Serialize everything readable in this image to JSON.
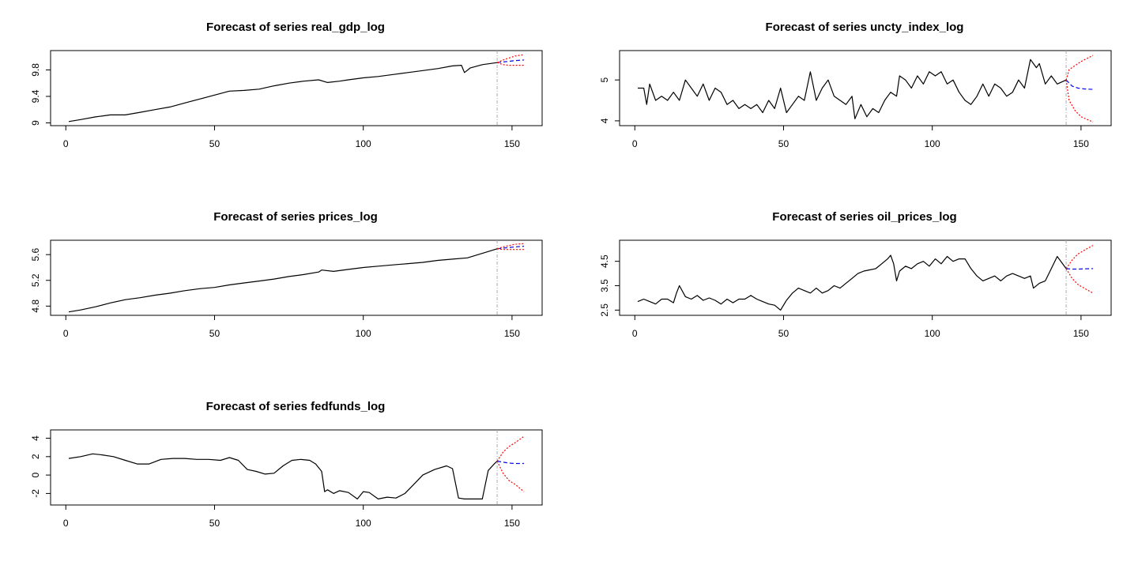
{
  "chart_data": [
    {
      "type": "line",
      "title": "Forecast of series real_gdp_log",
      "xlim": [
        1,
        154
      ],
      "ylim": [
        9.0,
        10.05
      ],
      "x_ticks": [
        0,
        50,
        100,
        150
      ],
      "y_ticks": [
        9.0,
        9.4,
        9.8
      ],
      "forecast_start": 145,
      "series": [
        {
          "role": "observed",
          "color": "#000000",
          "style": "solid",
          "x": [
            1,
            5,
            10,
            15,
            20,
            25,
            30,
            35,
            40,
            45,
            50,
            55,
            60,
            65,
            70,
            75,
            80,
            85,
            88,
            92,
            95,
            100,
            105,
            110,
            115,
            120,
            125,
            130,
            133,
            134,
            136,
            140,
            145
          ],
          "y": [
            9.02,
            9.05,
            9.09,
            9.12,
            9.12,
            9.16,
            9.2,
            9.24,
            9.3,
            9.36,
            9.42,
            9.48,
            9.49,
            9.51,
            9.56,
            9.6,
            9.63,
            9.65,
            9.61,
            9.63,
            9.65,
            9.68,
            9.7,
            9.73,
            9.76,
            9.79,
            9.82,
            9.86,
            9.87,
            9.76,
            9.83,
            9.88,
            9.91
          ]
        },
        {
          "role": "forecast",
          "color": "#0000ff",
          "style": "dashed",
          "x": [
            145,
            147,
            149,
            151,
            154
          ],
          "y": [
            9.91,
            9.92,
            9.93,
            9.94,
            9.95
          ]
        },
        {
          "role": "upper",
          "color": "#ff0000",
          "style": "dotted",
          "x": [
            145,
            147,
            149,
            151,
            154
          ],
          "y": [
            9.91,
            9.95,
            9.98,
            10.01,
            10.03
          ]
        },
        {
          "role": "lower",
          "color": "#ff0000",
          "style": "dotted",
          "x": [
            145,
            147,
            149,
            151,
            154
          ],
          "y": [
            9.91,
            9.88,
            9.87,
            9.87,
            9.87
          ]
        }
      ]
    },
    {
      "type": "line",
      "title": "Forecast of series uncty_index_log",
      "xlim": [
        1,
        154
      ],
      "ylim": [
        3.95,
        5.65
      ],
      "x_ticks": [
        0,
        50,
        100,
        150
      ],
      "y_ticks": [
        4.0,
        5.0
      ],
      "forecast_start": 145,
      "series": [
        {
          "role": "observed",
          "color": "#000000",
          "style": "solid",
          "x": [
            1,
            3,
            4,
            5,
            7,
            9,
            11,
            13,
            15,
            17,
            19,
            21,
            23,
            25,
            27,
            29,
            31,
            33,
            35,
            37,
            39,
            41,
            43,
            45,
            47,
            49,
            51,
            53,
            55,
            57,
            59,
            61,
            63,
            65,
            67,
            69,
            71,
            73,
            74,
            76,
            78,
            80,
            82,
            84,
            86,
            88,
            89,
            91,
            93,
            95,
            97,
            99,
            101,
            103,
            105,
            107,
            109,
            111,
            113,
            115,
            117,
            119,
            121,
            123,
            125,
            127,
            129,
            131,
            133,
            134,
            135,
            136,
            138,
            140,
            142,
            145
          ],
          "y": [
            4.8,
            4.8,
            4.4,
            4.9,
            4.5,
            4.6,
            4.5,
            4.7,
            4.5,
            5.0,
            4.8,
            4.6,
            4.9,
            4.5,
            4.8,
            4.7,
            4.4,
            4.5,
            4.3,
            4.4,
            4.3,
            4.4,
            4.2,
            4.5,
            4.3,
            4.8,
            4.2,
            4.4,
            4.6,
            4.5,
            5.2,
            4.5,
            4.8,
            5.0,
            4.6,
            4.5,
            4.4,
            4.6,
            4.05,
            4.4,
            4.1,
            4.3,
            4.2,
            4.5,
            4.7,
            4.6,
            5.1,
            5.0,
            4.8,
            5.1,
            4.9,
            5.2,
            5.1,
            5.2,
            4.9,
            5.0,
            4.7,
            4.5,
            4.4,
            4.6,
            4.9,
            4.6,
            4.9,
            4.8,
            4.6,
            4.7,
            5.0,
            4.8,
            5.5,
            5.4,
            5.3,
            5.4,
            4.9,
            5.1,
            4.9,
            5.0
          ]
        },
        {
          "role": "forecast",
          "color": "#0000ff",
          "style": "dashed",
          "x": [
            145,
            147,
            149,
            151,
            154
          ],
          "y": [
            5.0,
            4.85,
            4.8,
            4.78,
            4.77
          ]
        },
        {
          "role": "upper",
          "color": "#ff0000",
          "style": "dotted",
          "x": [
            145,
            146,
            148,
            150,
            154
          ],
          "y": [
            5.0,
            5.25,
            5.35,
            5.45,
            5.6
          ]
        },
        {
          "role": "lower",
          "color": "#ff0000",
          "style": "dotted",
          "x": [
            145,
            146,
            148,
            150,
            154
          ],
          "y": [
            5.0,
            4.5,
            4.25,
            4.1,
            3.97
          ]
        }
      ]
    },
    {
      "type": "line",
      "title": "Forecast of series prices_log",
      "xlim": [
        1,
        154
      ],
      "ylim": [
        4.7,
        5.78
      ],
      "x_ticks": [
        0,
        50,
        100,
        150
      ],
      "y_ticks": [
        4.8,
        5.2,
        5.6
      ],
      "forecast_start": 145,
      "series": [
        {
          "role": "observed",
          "color": "#000000",
          "style": "solid",
          "x": [
            1,
            5,
            10,
            15,
            20,
            25,
            30,
            35,
            40,
            45,
            50,
            55,
            60,
            65,
            70,
            75,
            80,
            85,
            86,
            90,
            95,
            100,
            105,
            110,
            115,
            120,
            125,
            130,
            135,
            140,
            145
          ],
          "y": [
            4.71,
            4.74,
            4.79,
            4.85,
            4.9,
            4.93,
            4.97,
            5.0,
            5.04,
            5.07,
            5.09,
            5.13,
            5.16,
            5.19,
            5.22,
            5.26,
            5.29,
            5.33,
            5.36,
            5.34,
            5.37,
            5.4,
            5.42,
            5.44,
            5.46,
            5.48,
            5.51,
            5.53,
            5.55,
            5.62,
            5.69
          ]
        },
        {
          "role": "forecast",
          "color": "#0000ff",
          "style": "dashed",
          "x": [
            145,
            147,
            149,
            151,
            154
          ],
          "y": [
            5.69,
            5.7,
            5.71,
            5.72,
            5.73
          ]
        },
        {
          "role": "upper",
          "color": "#ff0000",
          "style": "dotted",
          "x": [
            145,
            147,
            149,
            151,
            154
          ],
          "y": [
            5.69,
            5.72,
            5.74,
            5.76,
            5.77
          ]
        },
        {
          "role": "lower",
          "color": "#ff0000",
          "style": "dotted",
          "x": [
            145,
            147,
            149,
            151,
            154
          ],
          "y": [
            5.69,
            5.68,
            5.68,
            5.68,
            5.68
          ]
        }
      ]
    },
    {
      "type": "line",
      "title": "Forecast of series oil_prices_log",
      "xlim": [
        1,
        154
      ],
      "ylim": [
        2.4,
        5.25
      ],
      "x_ticks": [
        0,
        50,
        100,
        150
      ],
      "y_ticks": [
        2.5,
        3.5,
        4.5
      ],
      "forecast_start": 145,
      "series": [
        {
          "role": "observed",
          "color": "#000000",
          "style": "solid",
          "x": [
            1,
            3,
            5,
            7,
            9,
            11,
            13,
            14,
            15,
            17,
            19,
            21,
            23,
            25,
            27,
            29,
            31,
            33,
            35,
            37,
            39,
            41,
            43,
            45,
            47,
            49,
            51,
            53,
            55,
            57,
            59,
            61,
            63,
            65,
            67,
            69,
            71,
            73,
            75,
            77,
            79,
            81,
            83,
            85,
            86,
            87,
            88,
            89,
            91,
            93,
            95,
            97,
            99,
            101,
            103,
            105,
            107,
            109,
            111,
            113,
            115,
            117,
            119,
            121,
            123,
            125,
            127,
            129,
            131,
            133,
            134,
            136,
            138,
            140,
            142,
            145
          ],
          "y": [
            2.85,
            2.95,
            2.85,
            2.75,
            2.95,
            2.95,
            2.8,
            3.2,
            3.5,
            3.05,
            2.95,
            3.1,
            2.9,
            3.0,
            2.9,
            2.75,
            2.95,
            2.8,
            2.95,
            2.95,
            3.1,
            2.95,
            2.85,
            2.75,
            2.7,
            2.5,
            2.9,
            3.2,
            3.4,
            3.3,
            3.2,
            3.4,
            3.2,
            3.3,
            3.5,
            3.4,
            3.6,
            3.8,
            4.0,
            4.1,
            4.15,
            4.2,
            4.4,
            4.6,
            4.75,
            4.4,
            3.7,
            4.1,
            4.3,
            4.2,
            4.4,
            4.5,
            4.3,
            4.6,
            4.4,
            4.7,
            4.5,
            4.6,
            4.6,
            4.2,
            3.9,
            3.7,
            3.8,
            3.9,
            3.7,
            3.9,
            4.0,
            3.9,
            3.8,
            3.9,
            3.4,
            3.6,
            3.7,
            4.2,
            4.7,
            4.2
          ]
        },
        {
          "role": "forecast",
          "color": "#0000ff",
          "style": "dashed",
          "x": [
            145,
            147,
            149,
            151,
            154
          ],
          "y": [
            4.2,
            4.18,
            4.18,
            4.19,
            4.2
          ]
        },
        {
          "role": "upper",
          "color": "#ff0000",
          "style": "dotted",
          "x": [
            145,
            147,
            149,
            151,
            154
          ],
          "y": [
            4.2,
            4.55,
            4.8,
            4.95,
            5.15
          ]
        },
        {
          "role": "lower",
          "color": "#ff0000",
          "style": "dotted",
          "x": [
            145,
            147,
            149,
            151,
            154
          ],
          "y": [
            4.2,
            3.8,
            3.55,
            3.4,
            3.2
          ]
        }
      ]
    },
    {
      "type": "line",
      "title": "Forecast of series fedfunds_log",
      "xlim": [
        1,
        154
      ],
      "ylim": [
        -2.95,
        4.6
      ],
      "x_ticks": [
        0,
        50,
        100,
        150
      ],
      "y_ticks": [
        -2,
        0,
        2,
        4
      ],
      "forecast_start": 145,
      "series": [
        {
          "role": "observed",
          "color": "#000000",
          "style": "solid",
          "x": [
            1,
            5,
            9,
            12,
            16,
            20,
            24,
            28,
            32,
            36,
            40,
            44,
            48,
            52,
            55,
            58,
            61,
            64,
            67,
            70,
            73,
            76,
            79,
            82,
            84,
            86,
            87,
            88,
            90,
            92,
            95,
            98,
            100,
            102,
            105,
            108,
            111,
            114,
            117,
            120,
            124,
            128,
            130,
            132,
            134,
            136,
            140,
            142,
            144,
            145
          ],
          "y": [
            1.8,
            2.0,
            2.3,
            2.2,
            2.0,
            1.6,
            1.2,
            1.2,
            1.7,
            1.8,
            1.8,
            1.7,
            1.7,
            1.6,
            1.9,
            1.6,
            0.6,
            0.4,
            0.1,
            0.2,
            1.0,
            1.6,
            1.7,
            1.6,
            1.2,
            0.4,
            -1.8,
            -1.6,
            -2.0,
            -1.7,
            -1.9,
            -2.6,
            -1.8,
            -1.9,
            -2.6,
            -2.4,
            -2.5,
            -2.0,
            -1.0,
            0.0,
            0.6,
            1.0,
            0.7,
            -2.5,
            -2.6,
            -2.6,
            -2.6,
            0.5,
            1.2,
            1.5
          ]
        },
        {
          "role": "forecast",
          "color": "#0000ff",
          "style": "dashed",
          "x": [
            145,
            147,
            149,
            151,
            154
          ],
          "y": [
            1.5,
            1.4,
            1.3,
            1.25,
            1.25
          ]
        },
        {
          "role": "upper",
          "color": "#ff0000",
          "style": "dotted",
          "x": [
            145,
            147,
            149,
            151,
            154
          ],
          "y": [
            1.5,
            2.5,
            3.1,
            3.5,
            4.2
          ]
        },
        {
          "role": "lower",
          "color": "#ff0000",
          "style": "dotted",
          "x": [
            145,
            147,
            149,
            151,
            154
          ],
          "y": [
            1.5,
            0.2,
            -0.6,
            -1.0,
            -1.8
          ]
        }
      ]
    }
  ]
}
